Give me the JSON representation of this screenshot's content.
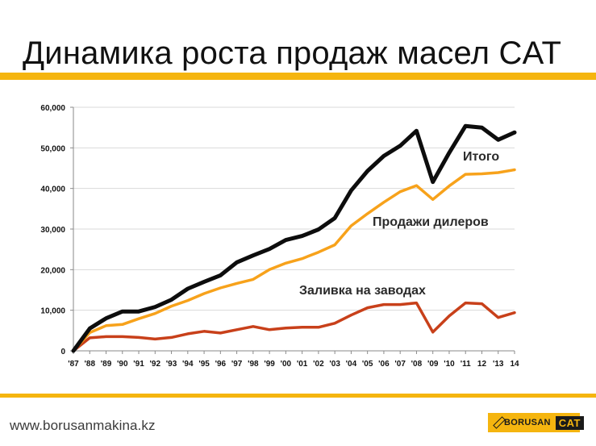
{
  "slide": {
    "title": "Динамика роста продаж масел CAT",
    "website": "www.borusanmakina.kz",
    "logo_text": "BORUSAN",
    "logo_cat": "CAT"
  },
  "colors": {
    "accent_band": "#f5b50f",
    "total": "#0d0d0d",
    "dealers": "#f7a21b",
    "factory": "#c8401a"
  },
  "chart_data": {
    "type": "line",
    "title": "",
    "xlabel": "",
    "ylabel": "",
    "categories": [
      "'87",
      "'88",
      "'89",
      "'90",
      "'91",
      "'92",
      "'93",
      "'94",
      "'95",
      "'96",
      "'97",
      "'98",
      "'99",
      "'00",
      "'01",
      "'02",
      "'03",
      "'04",
      "'05",
      "'06",
      "'07",
      "'08",
      "'09",
      "'10",
      "'11",
      "12",
      "'13",
      "14"
    ],
    "ylim": [
      0,
      60000
    ],
    "yticks": [
      0,
      10000,
      20000,
      30000,
      40000,
      50000,
      60000
    ],
    "ytick_labels": [
      "0",
      "10,000",
      "20,000",
      "30,000",
      "40,000",
      "50,000",
      "60,000"
    ],
    "grid": true,
    "series": [
      {
        "name": "Итого",
        "color_key": "total",
        "values": [
          0,
          5500,
          8000,
          9700,
          9700,
          10800,
          12600,
          15300,
          17000,
          18600,
          21800,
          23500,
          25100,
          27300,
          28300,
          29900,
          32700,
          39500,
          44300,
          48000,
          50500,
          54200,
          41600,
          48800,
          55400,
          55000,
          52000,
          53800
        ]
      },
      {
        "name": "Продажи дилеров",
        "color_key": "dealers",
        "values": [
          0,
          4500,
          6200,
          6500,
          7900,
          9200,
          11000,
          12400,
          14100,
          15500,
          16600,
          17600,
          20000,
          21600,
          22700,
          24300,
          26100,
          30800,
          33800,
          36600,
          39200,
          40700,
          37300,
          40600,
          43500,
          43600,
          43900,
          44600
        ]
      },
      {
        "name": "Заливка на заводах",
        "color_key": "factory",
        "values": [
          0,
          3200,
          3500,
          3500,
          3300,
          2900,
          3300,
          4200,
          4800,
          4400,
          5200,
          6000,
          5200,
          5600,
          5800,
          5800,
          6800,
          8800,
          10600,
          11400,
          11400,
          11800,
          4600,
          8600,
          11800,
          11600,
          8200,
          9400
        ]
      }
    ]
  }
}
